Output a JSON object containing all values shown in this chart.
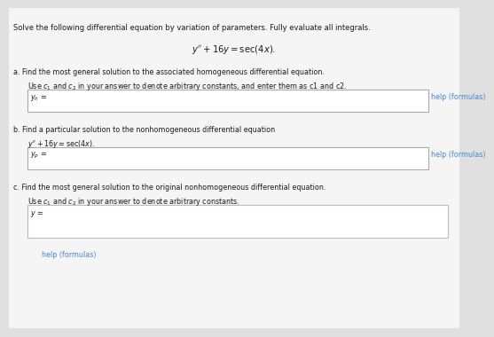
{
  "bg_color": "#e0e0e0",
  "panel_color": "#f5f5f5",
  "box_color": "#ffffff",
  "link_color": "#4a86c8",
  "text_color": "#1a1a1a",
  "gray_text": "#444444",
  "title_line1": "Solve the following differential equation by variation of parameters. Fully evaluate all integrals.",
  "part_a_line1": "a. Find the most general solution to the associated homogeneous differential equation.",
  "part_a_line2": "Use c₁ and c₂ in your answer to denote arbitrary constants, and enter them as c1 and c2.",
  "part_a_label": "$y_h$ =",
  "part_a_help": "help (formulas)",
  "part_b_line1": "b. Find a particular solution to the nonhomogeneous differential equation",
  "part_b_line2": "$y'' + 16y = \\sec(4x).$",
  "part_b_label": "$y_p$ =",
  "part_b_help": "help (formulas)",
  "part_c_line1": "c. Find the most general solution to the original nonhomogeneous differential equation.",
  "part_c_line2": "Use c₁ and c₂ in your answer to denote arbitrary constants.",
  "part_c_label": "$y$ =",
  "part_c_help": "help (formulas)"
}
